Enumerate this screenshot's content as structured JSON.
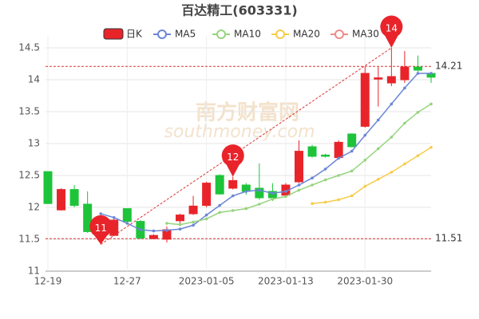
{
  "chart_data": {
    "type": "candlestick",
    "title": "百达精工(603331)",
    "watermark": "南方财富网",
    "watermark_sub": "southmoney.com",
    "categories": [
      "12-19",
      null,
      null,
      null,
      null,
      null,
      "12-27",
      null,
      null,
      null,
      null,
      null,
      "2023-01-05",
      null,
      null,
      null,
      null,
      null,
      "2023-01-13",
      null,
      null,
      null,
      null,
      null,
      "2023-01-30",
      null,
      null,
      null,
      null,
      null
    ],
    "candle": {
      "name": "日K",
      "up_color": "#e8242a",
      "down_color": "#1dc43a",
      "open": [
        12.56,
        11.96,
        12.28,
        12.05,
        11.72,
        11.56,
        11.98,
        11.78,
        11.51,
        11.5,
        11.79,
        11.9,
        12.03,
        12.5,
        12.3,
        12.35,
        12.3,
        12.25,
        12.19,
        12.4,
        12.95,
        12.82,
        12.78,
        13.15,
        13.27,
        14.01,
        13.95,
        14.0,
        14.2,
        14.1
      ],
      "close": [
        12.06,
        12.28,
        12.03,
        11.62,
        11.8,
        11.8,
        11.78,
        11.52,
        11.56,
        11.65,
        11.88,
        12.02,
        12.38,
        12.21,
        12.42,
        12.25,
        12.15,
        12.15,
        12.35,
        12.88,
        12.8,
        12.8,
        13.02,
        12.95,
        14.1,
        14.03,
        14.05,
        14.2,
        14.15,
        14.04
      ],
      "high": [
        12.56,
        12.3,
        12.35,
        12.25,
        11.85,
        11.82,
        11.98,
        11.8,
        11.58,
        11.7,
        11.9,
        12.18,
        12.4,
        12.52,
        12.48,
        12.38,
        12.69,
        12.38,
        12.38,
        13.05,
        12.98,
        12.84,
        13.05,
        13.16,
        14.2,
        14.2,
        14.5,
        14.45,
        14.38,
        14.12
      ],
      "low": [
        12.05,
        11.95,
        12.0,
        11.6,
        11.42,
        11.55,
        11.76,
        11.5,
        11.5,
        11.45,
        11.75,
        11.88,
        12.0,
        12.2,
        12.28,
        12.2,
        12.12,
        12.1,
        12.15,
        12.38,
        12.78,
        12.78,
        12.75,
        12.94,
        13.25,
        13.58,
        13.9,
        13.95,
        14.12,
        13.95
      ]
    },
    "series": [
      {
        "name": "MA5",
        "color": "#6b86d6",
        "values": [
          null,
          null,
          null,
          null,
          11.9,
          11.84,
          11.75,
          11.65,
          11.63,
          11.64,
          11.66,
          11.72,
          11.88,
          12.03,
          12.18,
          12.25,
          12.27,
          12.22,
          12.25,
          12.35,
          12.46,
          12.6,
          12.77,
          12.88,
          13.13,
          13.37,
          13.62,
          13.87,
          14.1,
          14.1
        ]
      },
      {
        "name": "MA10",
        "color": "#96d47e",
        "values": [
          null,
          null,
          null,
          null,
          null,
          null,
          null,
          null,
          null,
          11.75,
          11.73,
          11.77,
          11.82,
          11.92,
          11.95,
          11.98,
          12.05,
          12.13,
          12.17,
          12.27,
          12.35,
          12.43,
          12.5,
          12.57,
          12.74,
          12.92,
          13.1,
          13.32,
          13.49,
          13.62
        ]
      },
      {
        "name": "MA20",
        "color": "#f7cc4a",
        "values": [
          null,
          null,
          null,
          null,
          null,
          null,
          null,
          null,
          null,
          null,
          null,
          null,
          null,
          null,
          null,
          null,
          null,
          null,
          null,
          null,
          12.06,
          12.08,
          12.12,
          12.18,
          12.33,
          12.44,
          12.55,
          12.68,
          12.81,
          12.94
        ]
      },
      {
        "name": "MA30",
        "color": "#f08a8a",
        "values": [
          null,
          null,
          null,
          null,
          null,
          null,
          null,
          null,
          null,
          null,
          null,
          null,
          null,
          null,
          null,
          null,
          null,
          null,
          null,
          null,
          null,
          null,
          null,
          null,
          null,
          null,
          null,
          null,
          null,
          null
        ]
      }
    ],
    "hlines": [
      14.21,
      11.51
    ],
    "annotations": [
      {
        "text": "11",
        "index": 4,
        "at": "low"
      },
      {
        "text": "12",
        "index": 14,
        "at": "high"
      },
      {
        "text": "14",
        "index": 26,
        "at": "high"
      }
    ],
    "ylim": [
      11,
      14.5
    ],
    "yticks": [
      11,
      11.5,
      12,
      12.5,
      13,
      13.5,
      14,
      14.5
    ],
    "grid": true
  }
}
